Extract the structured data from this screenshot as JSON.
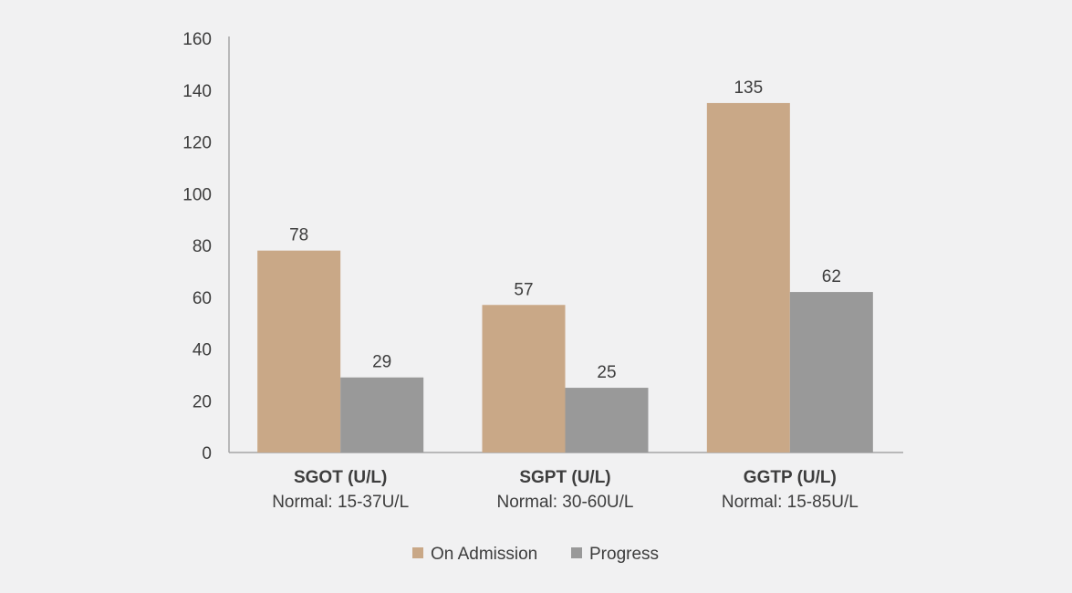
{
  "chart_data": {
    "type": "bar",
    "categories": [
      "SGOT (U/L)",
      "SGPT (U/L)",
      "GGTP (U/L)"
    ],
    "category_sublabels": [
      "Normal: 15-37U/L",
      "Normal: 30-60U/L",
      "Normal: 15-85U/L"
    ],
    "series": [
      {
        "name": "On Admission",
        "values": [
          78,
          57,
          135
        ],
        "color": "#c9a887"
      },
      {
        "name": "Progress",
        "values": [
          29,
          25,
          62
        ],
        "color": "#999999"
      }
    ],
    "ylim": [
      0,
      160
    ],
    "yticks": [
      0,
      20,
      40,
      60,
      80,
      100,
      120,
      140,
      160
    ],
    "grid": false,
    "legend": "bottom",
    "axis_color": "#a6a6a6"
  }
}
